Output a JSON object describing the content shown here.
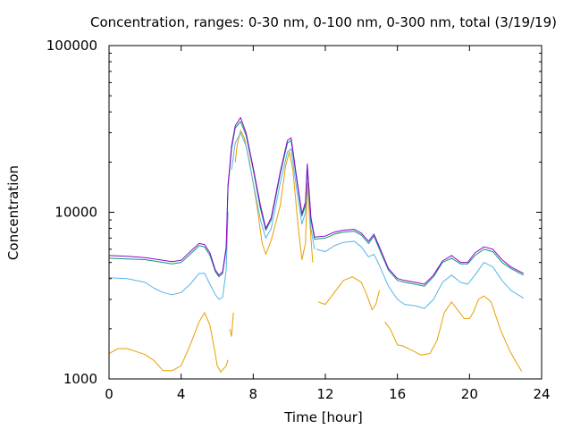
{
  "chart_data": {
    "type": "line",
    "title": "Concentration, ranges: 0-30 nm, 0-100 nm, 0-300 nm, total (3/19/19)",
    "xlabel": "Time [hour]",
    "ylabel": "Concentration",
    "xlim": [
      0,
      24
    ],
    "ylim": [
      1000,
      100000
    ],
    "yscale": "log",
    "grid": false,
    "legend": "none",
    "x_ticks": [
      "0",
      "4",
      "8",
      "12",
      "16",
      "20",
      "24"
    ],
    "y_ticks": [
      "1000",
      "10000",
      "100000"
    ],
    "x_tick_values": [
      0,
      4,
      8,
      12,
      16,
      20,
      24
    ],
    "y_tick_values": [
      1000,
      10000,
      100000
    ],
    "series": [
      {
        "color": "#e69f00",
        "segments": [
          [
            [
              0,
              1420
            ],
            [
              0.5,
              1520
            ],
            [
              1,
              1520
            ],
            [
              1.5,
              1460
            ],
            [
              2,
              1400
            ],
            [
              2.5,
              1290
            ],
            [
              3,
              1120
            ],
            [
              3.5,
              1120
            ],
            [
              4,
              1200
            ],
            [
              4.5,
              1600
            ],
            [
              5,
              2200
            ],
            [
              5.3,
              2500
            ],
            [
              5.6,
              2100
            ],
            [
              5.9,
              1400
            ],
            [
              6.0,
              1200
            ],
            [
              6.2,
              1100
            ],
            [
              6.5,
              1200
            ],
            [
              6.6,
              1300
            ]
          ],
          [
            [
              6.7,
              2000
            ],
            [
              6.8,
              1800
            ],
            [
              6.9,
              2500
            ]
          ],
          [
            [
              7.0,
              20000
            ],
            [
              7.1,
              25000
            ],
            [
              7.3,
              31000
            ],
            [
              7.5,
              28000
            ],
            [
              7.8,
              20000
            ],
            [
              8.2,
              11000
            ],
            [
              8.5,
              6500
            ],
            [
              8.7,
              5600
            ],
            [
              9,
              6800
            ],
            [
              9.5,
              11000
            ],
            [
              9.8,
              19000
            ],
            [
              10,
              23000
            ],
            [
              10.2,
              18000
            ],
            [
              10.5,
              8000
            ],
            [
              10.7,
              5200
            ],
            [
              10.9,
              6500
            ],
            [
              11,
              15000
            ],
            [
              11.2,
              7000
            ],
            [
              11.3,
              5000
            ]
          ],
          [
            [
              11.6,
              2900
            ],
            [
              12,
              2800
            ],
            [
              12.5,
              3300
            ],
            [
              13,
              3900
            ],
            [
              13.5,
              4100
            ],
            [
              14,
              3800
            ],
            [
              14.3,
              3200
            ],
            [
              14.6,
              2600
            ],
            [
              14.8,
              2800
            ],
            [
              15,
              3400
            ]
          ],
          [
            [
              15.3,
              2200
            ],
            [
              15.6,
              2000
            ],
            [
              16,
              1600
            ],
            [
              16.3,
              1580
            ],
            [
              16.6,
              1520
            ],
            [
              17,
              1450
            ],
            [
              17.3,
              1390
            ],
            [
              17.8,
              1420
            ],
            [
              18.2,
              1700
            ],
            [
              18.6,
              2500
            ],
            [
              19,
              2900
            ],
            [
              19.4,
              2550
            ],
            [
              19.7,
              2300
            ],
            [
              20,
              2300
            ],
            [
              20.2,
              2500
            ],
            [
              20.5,
              3000
            ],
            [
              20.8,
              3150
            ],
            [
              21.2,
              2900
            ],
            [
              21.7,
              2000
            ],
            [
              22.2,
              1500
            ],
            [
              22.6,
              1250
            ],
            [
              22.9,
              1110
            ]
          ]
        ]
      },
      {
        "color": "#56b4e9",
        "segments": [
          [
            [
              0,
              4050
            ],
            [
              1,
              4000
            ],
            [
              2,
              3800
            ],
            [
              2.5,
              3500
            ],
            [
              3,
              3300
            ],
            [
              3.5,
              3200
            ],
            [
              4,
              3300
            ],
            [
              4.5,
              3700
            ],
            [
              5,
              4300
            ],
            [
              5.3,
              4300
            ],
            [
              5.6,
              3700
            ],
            [
              5.9,
              3200
            ],
            [
              6.1,
              3000
            ],
            [
              6.3,
              3100
            ],
            [
              6.5,
              4500
            ],
            [
              6.6,
              10000
            ]
          ],
          [
            [
              6.8,
              18000
            ],
            [
              7.0,
              26000
            ],
            [
              7.3,
              30000
            ],
            [
              7.6,
              25000
            ],
            [
              8,
              15000
            ],
            [
              8.4,
              9000
            ],
            [
              8.7,
              7000
            ],
            [
              9,
              8000
            ],
            [
              9.5,
              15000
            ],
            [
              9.9,
              23000
            ],
            [
              10.1,
              24000
            ],
            [
              10.4,
              14000
            ],
            [
              10.7,
              8500
            ],
            [
              10.9,
              10000
            ],
            [
              11,
              18000
            ],
            [
              11.2,
              8000
            ],
            [
              11.4,
              6000
            ]
          ],
          [
            [
              11.5,
              6000
            ],
            [
              12,
              5800
            ],
            [
              12.5,
              6300
            ],
            [
              13,
              6600
            ],
            [
              13.6,
              6700
            ],
            [
              14,
              6200
            ],
            [
              14.4,
              5400
            ],
            [
              14.7,
              5600
            ],
            [
              15,
              4800
            ],
            [
              15.5,
              3600
            ],
            [
              16,
              3000
            ],
            [
              16.4,
              2800
            ],
            [
              17,
              2750
            ],
            [
              17.5,
              2650
            ],
            [
              18,
              3000
            ],
            [
              18.5,
              3800
            ],
            [
              19,
              4200
            ],
            [
              19.5,
              3800
            ],
            [
              19.9,
              3700
            ],
            [
              20.3,
              4200
            ],
            [
              20.8,
              5000
            ],
            [
              21.3,
              4700
            ],
            [
              21.8,
              3900
            ],
            [
              22.3,
              3400
            ],
            [
              22.8,
              3150
            ],
            [
              23,
              3050
            ]
          ]
        ]
      },
      {
        "color": "#009e73",
        "segments": [
          [
            [
              0,
              5300
            ],
            [
              1,
              5250
            ],
            [
              2,
              5200
            ],
            [
              3,
              5000
            ],
            [
              3.5,
              4900
            ],
            [
              4,
              5000
            ],
            [
              4.5,
              5600
            ],
            [
              5,
              6300
            ],
            [
              5.3,
              6200
            ],
            [
              5.6,
              5500
            ],
            [
              5.9,
              4400
            ],
            [
              6.1,
              4100
            ],
            [
              6.3,
              4300
            ],
            [
              6.5,
              6000
            ],
            [
              6.6,
              14000
            ],
            [
              6.8,
              24000
            ],
            [
              7.0,
              32000
            ],
            [
              7.3,
              35000
            ],
            [
              7.6,
              29000
            ],
            [
              8,
              18000
            ],
            [
              8.4,
              10500
            ],
            [
              8.7,
              7800
            ],
            [
              9,
              9000
            ],
            [
              9.5,
              17000
            ],
            [
              9.9,
              26000
            ],
            [
              10.1,
              27000
            ],
            [
              10.4,
              16000
            ],
            [
              10.7,
              9500
            ],
            [
              10.9,
              11000
            ],
            [
              11,
              19000
            ],
            [
              11.2,
              9000
            ],
            [
              11.4,
              6900
            ],
            [
              12,
              7000
            ],
            [
              12.5,
              7400
            ],
            [
              13,
              7600
            ],
            [
              13.6,
              7700
            ],
            [
              14,
              7300
            ],
            [
              14.4,
              6500
            ],
            [
              14.7,
              7200
            ],
            [
              15,
              6000
            ],
            [
              15.5,
              4500
            ],
            [
              16,
              3900
            ],
            [
              16.4,
              3800
            ],
            [
              17,
              3700
            ],
            [
              17.5,
              3600
            ],
            [
              18,
              4100
            ],
            [
              18.5,
              5000
            ],
            [
              19,
              5300
            ],
            [
              19.5,
              4900
            ],
            [
              19.9,
              4900
            ],
            [
              20.3,
              5500
            ],
            [
              20.8,
              6000
            ],
            [
              21.3,
              5800
            ],
            [
              21.8,
              5000
            ],
            [
              22.3,
              4600
            ],
            [
              22.8,
              4300
            ],
            [
              23,
              4200
            ]
          ]
        ]
      },
      {
        "color": "#9400d3",
        "segments": [
          [
            [
              0,
              5500
            ],
            [
              1,
              5450
            ],
            [
              2,
              5350
            ],
            [
              3,
              5150
            ],
            [
              3.5,
              5050
            ],
            [
              4,
              5150
            ],
            [
              4.5,
              5800
            ],
            [
              5,
              6500
            ],
            [
              5.3,
              6400
            ],
            [
              5.6,
              5700
            ],
            [
              5.9,
              4500
            ],
            [
              6.1,
              4200
            ],
            [
              6.3,
              4400
            ],
            [
              6.5,
              6200
            ],
            [
              6.6,
              14500
            ],
            [
              6.8,
              25000
            ],
            [
              7.0,
              33000
            ],
            [
              7.3,
              37000
            ],
            [
              7.6,
              30000
            ],
            [
              8,
              18500
            ],
            [
              8.4,
              11000
            ],
            [
              8.7,
              8000
            ],
            [
              9,
              9300
            ],
            [
              9.5,
              17500
            ],
            [
              9.9,
              27000
            ],
            [
              10.1,
              28000
            ],
            [
              10.4,
              16500
            ],
            [
              10.7,
              9800
            ],
            [
              10.9,
              11500
            ],
            [
              11,
              19500
            ],
            [
              11.2,
              9300
            ],
            [
              11.4,
              7100
            ],
            [
              12,
              7200
            ],
            [
              12.5,
              7600
            ],
            [
              13,
              7800
            ],
            [
              13.6,
              7900
            ],
            [
              14,
              7500
            ],
            [
              14.4,
              6700
            ],
            [
              14.7,
              7400
            ],
            [
              15,
              6200
            ],
            [
              15.5,
              4600
            ],
            [
              16,
              4000
            ],
            [
              16.4,
              3900
            ],
            [
              17,
              3800
            ],
            [
              17.5,
              3700
            ],
            [
              18,
              4200
            ],
            [
              18.5,
              5100
            ],
            [
              19,
              5500
            ],
            [
              19.5,
              5000
            ],
            [
              19.9,
              5000
            ],
            [
              20.3,
              5700
            ],
            [
              20.8,
              6200
            ],
            [
              21.3,
              6000
            ],
            [
              21.8,
              5200
            ],
            [
              22.3,
              4700
            ],
            [
              22.8,
              4400
            ],
            [
              23,
              4300
            ]
          ]
        ]
      }
    ]
  }
}
